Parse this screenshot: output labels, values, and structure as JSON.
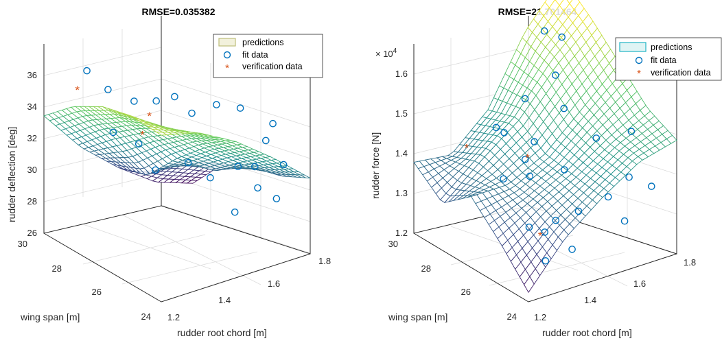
{
  "chart_data": [
    {
      "type": "surface3d",
      "title": "RMSE=0.035382",
      "xlabel": "rudder root chord [m]",
      "ylabel": "wing span [m]",
      "zlabel": "rudder deflection [deg]",
      "x_ticks": [
        "1.2",
        "1.4",
        "1.6",
        "1.8"
      ],
      "y_ticks": [
        "24",
        "26",
        "28",
        "30"
      ],
      "z_ticks": [
        "26",
        "28",
        "30",
        "32",
        "34",
        "36"
      ],
      "xlim": [
        1.2,
        1.8
      ],
      "ylim": [
        24,
        30
      ],
      "zlim": [
        26,
        36
      ],
      "colormap": [
        "#440154",
        "#3b528b",
        "#21918c",
        "#5ec962",
        "#fde725"
      ],
      "legend": [
        "predictions",
        "fit data",
        "verification data"
      ],
      "legend_position": "top-right",
      "surface": {
        "x": [
          1.2,
          1.35,
          1.5,
          1.65,
          1.8
        ],
        "y": [
          24,
          25.5,
          27,
          28.5,
          30
        ],
        "z": [
          [
            34.8,
            34.3,
            33.2,
            31.7,
            30.0
          ],
          [
            34.9,
            33.6,
            32.0,
            30.5,
            29.2
          ],
          [
            34.5,
            32.6,
            30.5,
            29.2,
            28.9
          ],
          [
            33.6,
            31.4,
            28.7,
            28.9,
            28.0
          ],
          [
            32.2,
            29.9,
            28.2,
            26.8,
            26.1
          ]
        ]
      },
      "fit_data": [
        {
          "x": 1.31,
          "y": 29.2,
          "z": 34.6
        },
        {
          "x": 1.34,
          "y": 28.5,
          "z": 33.9
        },
        {
          "x": 1.39,
          "y": 27.8,
          "z": 33.5
        },
        {
          "x": 1.44,
          "y": 27.3,
          "z": 33.6
        },
        {
          "x": 1.49,
          "y": 27.0,
          "z": 33.8
        },
        {
          "x": 1.29,
          "y": 27.6,
          "z": 32.4
        },
        {
          "x": 1.33,
          "y": 26.8,
          "z": 32.1
        },
        {
          "x": 1.52,
          "y": 26.5,
          "z": 33.1
        },
        {
          "x": 1.58,
          "y": 26.0,
          "z": 33.6
        },
        {
          "x": 1.66,
          "y": 25.8,
          "z": 33.2
        },
        {
          "x": 1.35,
          "y": 26.2,
          "z": 31.0
        },
        {
          "x": 1.45,
          "y": 25.8,
          "z": 31.2
        },
        {
          "x": 1.5,
          "y": 25.3,
          "z": 30.5
        },
        {
          "x": 1.58,
          "y": 24.9,
          "z": 31.0
        },
        {
          "x": 1.64,
          "y": 24.8,
          "z": 30.8
        },
        {
          "x": 1.7,
          "y": 25.0,
          "z": 31.8
        },
        {
          "x": 1.74,
          "y": 24.6,
          "z": 30.6
        },
        {
          "x": 1.62,
          "y": 24.4,
          "z": 30.0
        },
        {
          "x": 1.52,
          "y": 24.3,
          "z": 29.2
        },
        {
          "x": 1.76,
          "y": 25.4,
          "z": 32.2
        },
        {
          "x": 1.68,
          "y": 24.2,
          "z": 29.3
        }
      ],
      "verification_data": [
        {
          "x": 1.24,
          "y": 28.8,
          "z": 34.2
        },
        {
          "x": 1.42,
          "y": 27.4,
          "z": 32.9
        },
        {
          "x": 1.36,
          "y": 27.0,
          "z": 32.4
        }
      ]
    },
    {
      "type": "surface3d",
      "title": "RMSE=21.701464",
      "xlabel": "rudder root chord [m]",
      "ylabel": "wing span [m]",
      "zlabel": "rudder force [N]",
      "z_exponent": "× 10^4",
      "x_ticks": [
        "1.2",
        "1.4",
        "1.6",
        "1.8"
      ],
      "y_ticks": [
        "24",
        "26",
        "28",
        "30"
      ],
      "z_ticks": [
        "1.2",
        "1.3",
        "1.4",
        "1.5",
        "1.6"
      ],
      "xlim": [
        1.2,
        1.8
      ],
      "ylim": [
        24,
        30
      ],
      "zlim": [
        12000,
        16000
      ],
      "colormap": [
        "#440154",
        "#3b528b",
        "#21918c",
        "#5ec962",
        "#fde725"
      ],
      "legend": [
        "predictions",
        "fit data",
        "verification data"
      ],
      "legend_position": "top-right",
      "surface": {
        "x": [
          1.2,
          1.35,
          1.5,
          1.65,
          1.8
        ],
        "y": [
          24,
          25.5,
          27,
          28.5,
          30
        ],
        "z": [
          [
            12200,
            13100,
            13700,
            14200,
            14400
          ],
          [
            12900,
            13400,
            13800,
            14300,
            14700
          ],
          [
            13500,
            13500,
            13900,
            14600,
            15300
          ],
          [
            13000,
            13700,
            14300,
            15200,
            15900
          ],
          [
            13500,
            13400,
            14100,
            15500,
            16400
          ]
        ]
      },
      "fit_data": [
        {
          "x": 1.78,
          "y": 29.5,
          "z": 16300
        },
        {
          "x": 1.66,
          "y": 28.2,
          "z": 15800
        },
        {
          "x": 1.62,
          "y": 28.6,
          "z": 15900
        },
        {
          "x": 1.58,
          "y": 27.5,
          "z": 15300
        },
        {
          "x": 1.48,
          "y": 27.8,
          "z": 14900
        },
        {
          "x": 1.38,
          "y": 27.6,
          "z": 14400
        },
        {
          "x": 1.34,
          "y": 27.5,
          "z": 14600
        },
        {
          "x": 1.56,
          "y": 26.8,
          "z": 14800
        },
        {
          "x": 1.44,
          "y": 26.8,
          "z": 14300
        },
        {
          "x": 1.38,
          "y": 26.5,
          "z": 14100
        },
        {
          "x": 1.36,
          "y": 26.0,
          "z": 13900
        },
        {
          "x": 1.3,
          "y": 26.6,
          "z": 13800
        },
        {
          "x": 1.5,
          "y": 26.0,
          "z": 13800
        },
        {
          "x": 1.66,
          "y": 26.4,
          "z": 14100
        },
        {
          "x": 1.74,
          "y": 25.6,
          "z": 14300
        },
        {
          "x": 1.7,
          "y": 25.2,
          "z": 13500
        },
        {
          "x": 1.6,
          "y": 25.0,
          "z": 13300
        },
        {
          "x": 1.48,
          "y": 25.0,
          "z": 13200
        },
        {
          "x": 1.38,
          "y": 24.9,
          "z": 13200
        },
        {
          "x": 1.32,
          "y": 24.7,
          "z": 13100
        },
        {
          "x": 1.28,
          "y": 25.0,
          "z": 13200
        },
        {
          "x": 1.76,
          "y": 24.8,
          "z": 13300
        },
        {
          "x": 1.62,
          "y": 24.4,
          "z": 12900
        },
        {
          "x": 1.4,
          "y": 24.3,
          "z": 12700
        },
        {
          "x": 1.3,
          "y": 24.4,
          "z": 12600
        }
      ],
      "verification_data": [
        {
          "x": 1.22,
          "y": 27.5,
          "z": 14400
        },
        {
          "x": 1.42,
          "y": 26.9,
          "z": 14000
        },
        {
          "x": 1.34,
          "y": 25.2,
          "z": 12900
        }
      ]
    }
  ]
}
